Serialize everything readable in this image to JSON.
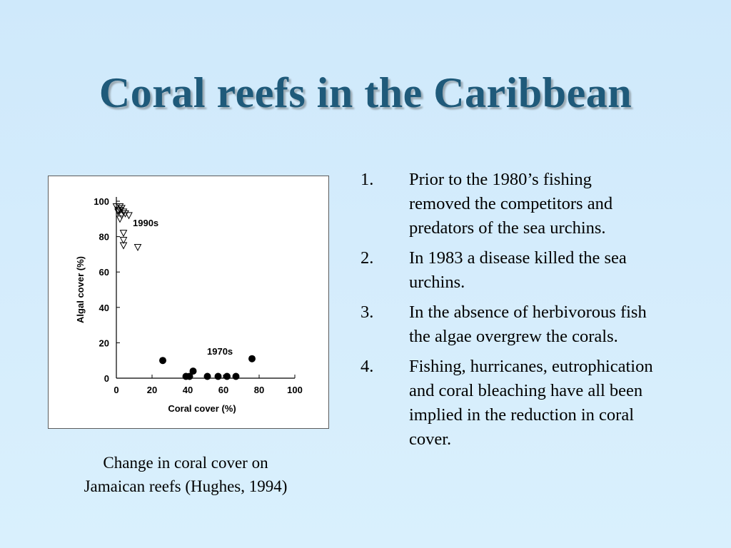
{
  "slide": {
    "title": "Coral reefs in the Caribbean",
    "caption": [
      "Change in coral cover on",
      "Jamaican reefs (Hughes, 1994)"
    ],
    "list": [
      {
        "num": "1.",
        "lines": [
          "Prior to the 1980’s fishing",
          "removed the competitors  and",
          "predators of the sea urchins."
        ]
      },
      {
        "num": "2.",
        "lines": [
          "In 1983 a disease killed the sea",
          "urchins."
        ]
      },
      {
        "num": "3.",
        "lines": [
          "In the absence of herbivorous fish",
          "the algae overgrew the corals."
        ]
      },
      {
        "num": "4.",
        "lines": [
          "Fishing, hurricanes, eutrophication",
          "and coral bleaching have all been",
          "implied in the reduction in coral",
          "cover."
        ]
      }
    ]
  },
  "chart_data": {
    "type": "scatter",
    "xlabel": "Coral cover (%)",
    "ylabel": "Algal cover (%)",
    "xlim": [
      0,
      100
    ],
    "ylim": [
      0,
      100
    ],
    "xticks": [
      0,
      20,
      40,
      60,
      80,
      100
    ],
    "yticks": [
      0,
      20,
      40,
      60,
      80,
      100
    ],
    "grid": false,
    "series": [
      {
        "name": "1990s",
        "marker": "open-triangle-down",
        "color": "#000000",
        "points": [
          [
            0,
            97
          ],
          [
            1,
            95
          ],
          [
            1,
            94
          ],
          [
            2,
            97
          ],
          [
            2,
            95
          ],
          [
            3,
            96
          ],
          [
            3,
            92
          ],
          [
            4,
            94
          ],
          [
            5,
            93
          ],
          [
            7,
            92
          ],
          [
            2,
            90
          ],
          [
            4,
            82
          ],
          [
            4,
            78
          ],
          [
            4,
            75
          ],
          [
            12,
            74
          ]
        ]
      },
      {
        "name": "1970s",
        "marker": "filled-circle",
        "color": "#000000",
        "points": [
          [
            26,
            10
          ],
          [
            39,
            1
          ],
          [
            41,
            1
          ],
          [
            43,
            4
          ],
          [
            51,
            1
          ],
          [
            57,
            1
          ],
          [
            62,
            1
          ],
          [
            67,
            1
          ],
          [
            76,
            11
          ]
        ]
      }
    ]
  }
}
